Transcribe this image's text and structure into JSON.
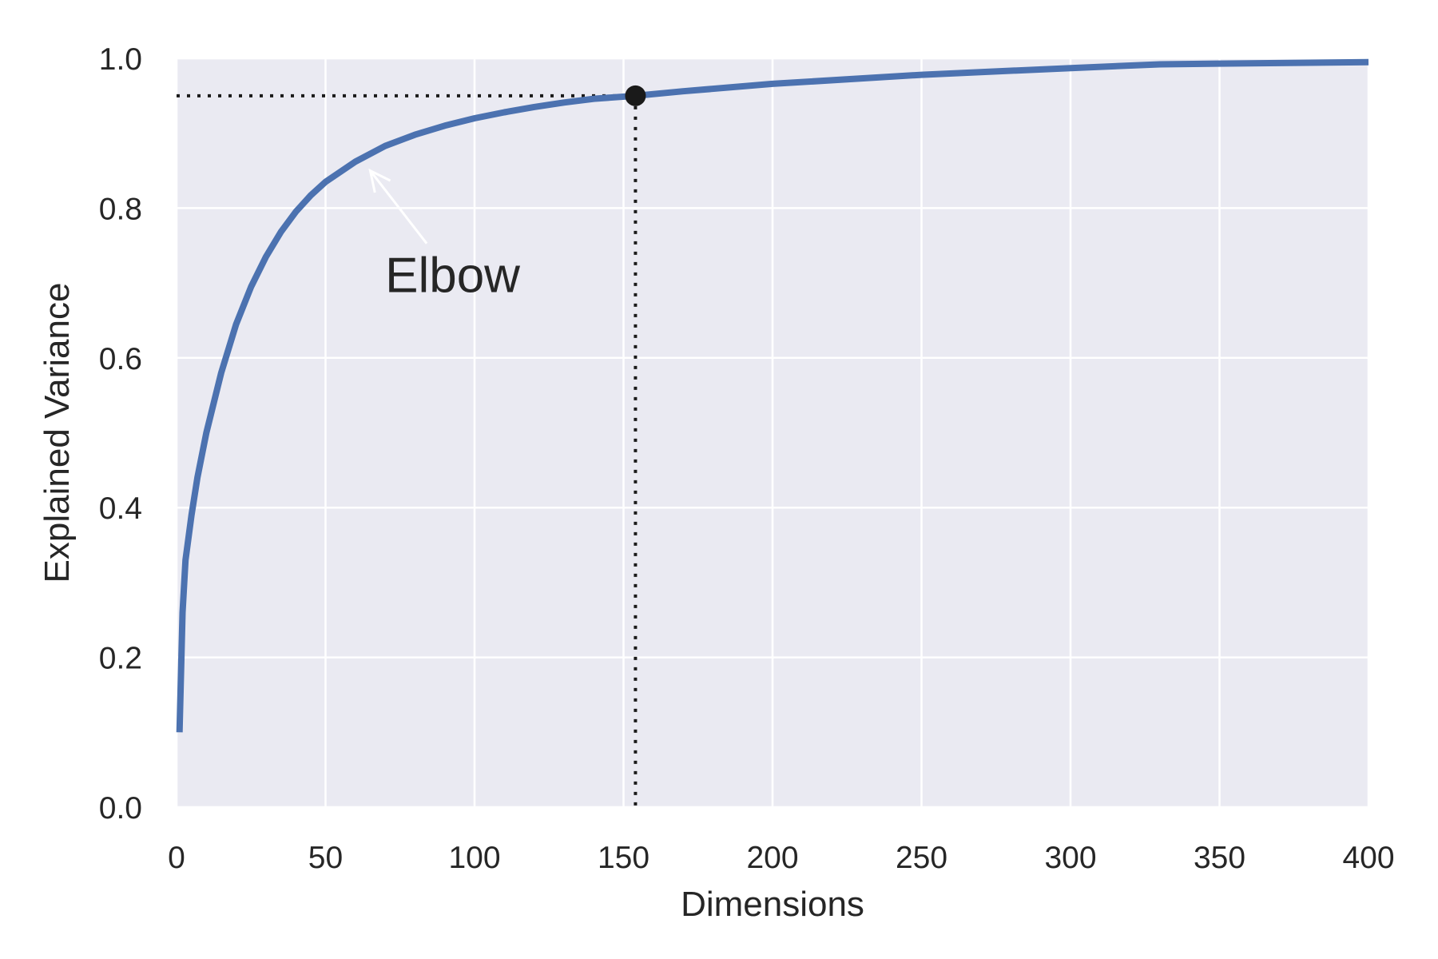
{
  "chart_data": {
    "type": "line",
    "title": "",
    "xlabel": "Dimensions",
    "ylabel": "Explained Variance",
    "xlim": [
      0,
      400
    ],
    "ylim": [
      0,
      1.0
    ],
    "x_ticks": [
      0,
      50,
      100,
      150,
      200,
      250,
      300,
      350,
      400
    ],
    "x_tick_labels": [
      "0",
      "50",
      "100",
      "150",
      "200",
      "250",
      "300",
      "350",
      "400"
    ],
    "y_ticks": [
      0.0,
      0.2,
      0.4,
      0.6,
      0.8,
      1.0
    ],
    "y_tick_labels": [
      "0.0",
      "0.2",
      "0.4",
      "0.6",
      "0.8",
      "1.0"
    ],
    "grid": true,
    "background_color": "#eaeaf2",
    "series": [
      {
        "color": "#4c72b0",
        "x": [
          1,
          2,
          3,
          5,
          7,
          10,
          15,
          20,
          25,
          30,
          35,
          40,
          45,
          50,
          60,
          70,
          80,
          90,
          100,
          110,
          120,
          130,
          140,
          154,
          170,
          200,
          250,
          300,
          330,
          350,
          400
        ],
        "y": [
          0.1,
          0.26,
          0.33,
          0.39,
          0.44,
          0.5,
          0.58,
          0.645,
          0.695,
          0.735,
          0.768,
          0.795,
          0.817,
          0.835,
          0.862,
          0.883,
          0.898,
          0.91,
          0.92,
          0.928,
          0.935,
          0.941,
          0.946,
          0.95,
          0.956,
          0.966,
          0.978,
          0.987,
          0.992,
          0.993,
          0.995
        ]
      }
    ],
    "threshold_point": {
      "x": 154,
      "y": 0.95
    },
    "reference_lines": [
      {
        "orientation": "horizontal",
        "value": 0.95,
        "style": "dotted",
        "color": "#1a1a1a"
      },
      {
        "orientation": "vertical",
        "value": 154,
        "style": "dotted",
        "color": "#1a1a1a"
      }
    ],
    "annotations": [
      {
        "text": "Elbow",
        "text_x": 70,
        "text_y": 0.71,
        "arrow_to_x": 65,
        "arrow_to_y": 0.85
      }
    ]
  }
}
